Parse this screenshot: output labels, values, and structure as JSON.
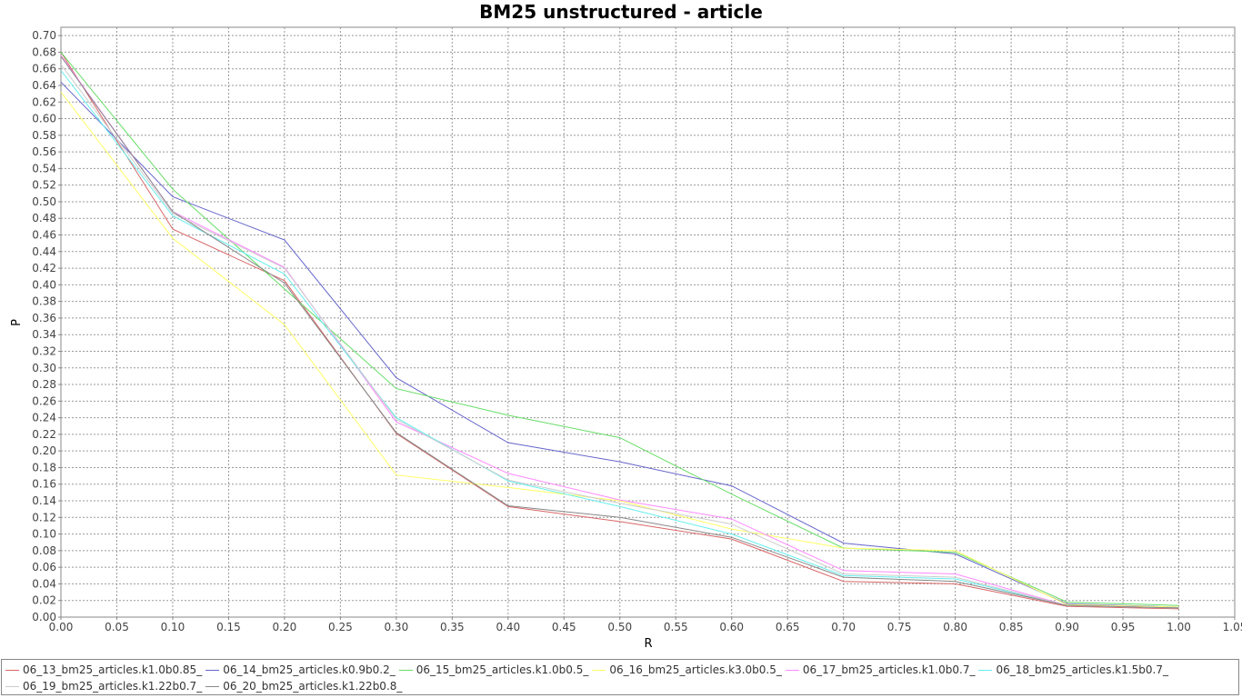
{
  "chart_data": {
    "type": "line",
    "title": "BM25 unstructured - article",
    "xlabel": "R",
    "ylabel": "P",
    "xlim": [
      0,
      1.05
    ],
    "ylim": [
      0,
      0.71
    ],
    "x_ticks": [
      "0.00",
      "0.05",
      "0.10",
      "0.15",
      "0.20",
      "0.25",
      "0.30",
      "0.35",
      "0.40",
      "0.45",
      "0.50",
      "0.55",
      "0.60",
      "0.65",
      "0.70",
      "0.75",
      "0.80",
      "0.85",
      "0.90",
      "0.95",
      "1.00",
      "1.05"
    ],
    "y_ticks": [
      "0.00",
      "0.02",
      "0.04",
      "0.06",
      "0.08",
      "0.10",
      "0.12",
      "0.14",
      "0.16",
      "0.18",
      "0.20",
      "0.22",
      "0.24",
      "0.26",
      "0.28",
      "0.30",
      "0.32",
      "0.34",
      "0.36",
      "0.38",
      "0.40",
      "0.42",
      "0.44",
      "0.46",
      "0.48",
      "0.50",
      "0.52",
      "0.54",
      "0.56",
      "0.58",
      "0.60",
      "0.62",
      "0.64",
      "0.66",
      "0.68",
      "0.70"
    ],
    "grid": true,
    "legend_position": "bottom",
    "x": [
      0.0,
      0.1,
      0.2,
      0.3,
      0.4,
      0.5,
      0.6,
      0.7,
      0.8,
      0.9,
      1.0
    ],
    "series": [
      {
        "name": "06_13_bm25_articles.k1.0b0.85_",
        "color": "#d96666",
        "values": [
          0.68,
          0.467,
          0.405,
          0.221,
          0.133,
          0.115,
          0.094,
          0.043,
          0.04,
          0.013,
          0.01
        ]
      },
      {
        "name": "06_14_bm25_articles.k0.9b0.2_",
        "color": "#6666cc",
        "values": [
          0.644,
          0.506,
          0.454,
          0.288,
          0.21,
          0.187,
          0.158,
          0.089,
          0.076,
          0.016,
          0.012
        ]
      },
      {
        "name": "06_15_bm25_articles.k1.0b0.5_",
        "color": "#66dd66",
        "values": [
          0.68,
          0.515,
          0.395,
          0.275,
          0.243,
          0.216,
          0.148,
          0.083,
          0.078,
          0.018,
          0.014
        ]
      },
      {
        "name": "06_16_bm25_articles.k3.0b0.5_",
        "color": "#ffff66",
        "values": [
          0.632,
          0.456,
          0.352,
          0.171,
          0.156,
          0.14,
          0.106,
          0.083,
          0.08,
          0.015,
          0.012
        ]
      },
      {
        "name": "06_17_bm25_articles.k1.0b0.7_",
        "color": "#ff88ff",
        "values": [
          0.676,
          0.488,
          0.421,
          0.235,
          0.173,
          0.141,
          0.118,
          0.056,
          0.052,
          0.014,
          0.011
        ]
      },
      {
        "name": "06_18_bm25_articles.k1.5b0.7_",
        "color": "#66eeee",
        "values": [
          0.658,
          0.483,
          0.413,
          0.24,
          0.164,
          0.133,
          0.1,
          0.05,
          0.046,
          0.014,
          0.011
        ]
      },
      {
        "name": "06_19_bm25_articles.k1.22b0.7_",
        "color": "#cccccc",
        "values": [
          0.665,
          0.486,
          0.42,
          0.238,
          0.165,
          0.137,
          0.112,
          0.052,
          0.048,
          0.014,
          0.011
        ]
      },
      {
        "name": "06_20_bm25_articles.k1.22b0.8_",
        "color": "#888888",
        "values": [
          0.675,
          0.488,
          0.402,
          0.222,
          0.134,
          0.12,
          0.096,
          0.048,
          0.043,
          0.014,
          0.011
        ]
      }
    ]
  }
}
